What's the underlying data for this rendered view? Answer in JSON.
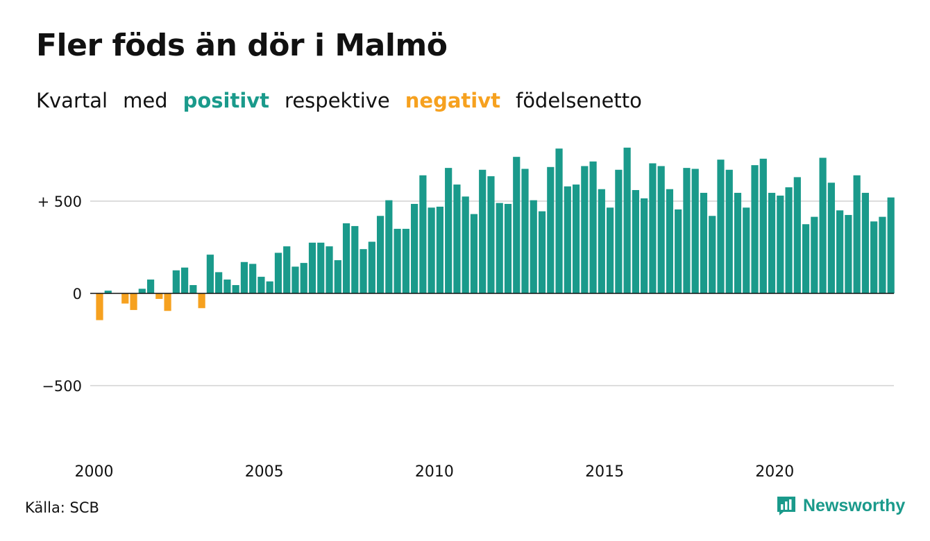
{
  "title": "Fler föds än dör i Malmö",
  "subtitle": {
    "w1": "Kvartal",
    "w2": "med",
    "positive": "positivt",
    "w3": "respektive",
    "negative": "negativt",
    "w4": "födelsenetto"
  },
  "source": "Källa: SCB",
  "logo_text": "Newsworthy",
  "colors": {
    "positive": "#1a9a8b",
    "negative": "#f6a11f",
    "grid": "#dddddd",
    "axis": "#111111"
  },
  "chart_data": {
    "type": "bar",
    "x_unit": "quarter",
    "start_year": 2000,
    "start_quarter": 1,
    "ylim": [
      -800,
      800
    ],
    "grid": true,
    "y_ticks": [
      {
        "value": 500,
        "label": "+ 500"
      },
      {
        "value": 0,
        "label": "0"
      },
      {
        "value": -500,
        "label": "−500"
      }
    ],
    "x_ticks": [
      {
        "label": "2000"
      },
      {
        "label": "2005"
      },
      {
        "label": "2010"
      },
      {
        "label": "2015"
      },
      {
        "label": "2020"
      }
    ],
    "values": [
      -145,
      15,
      0,
      -55,
      -90,
      25,
      75,
      -30,
      -95,
      125,
      140,
      45,
      -80,
      210,
      115,
      75,
      45,
      170,
      160,
      90,
      65,
      220,
      255,
      145,
      165,
      275,
      275,
      255,
      180,
      380,
      365,
      240,
      280,
      420,
      505,
      350,
      350,
      485,
      640,
      465,
      470,
      680,
      590,
      525,
      430,
      670,
      635,
      490,
      485,
      740,
      675,
      505,
      445,
      685,
      785,
      580,
      590,
      690,
      715,
      565,
      465,
      670,
      790,
      560,
      515,
      705,
      690,
      565,
      455,
      680,
      675,
      545,
      420,
      725,
      670,
      545,
      465,
      695,
      730,
      545,
      530,
      575,
      630,
      375,
      415,
      735,
      600,
      450,
      425,
      640,
      545,
      390,
      415,
      520
    ]
  }
}
